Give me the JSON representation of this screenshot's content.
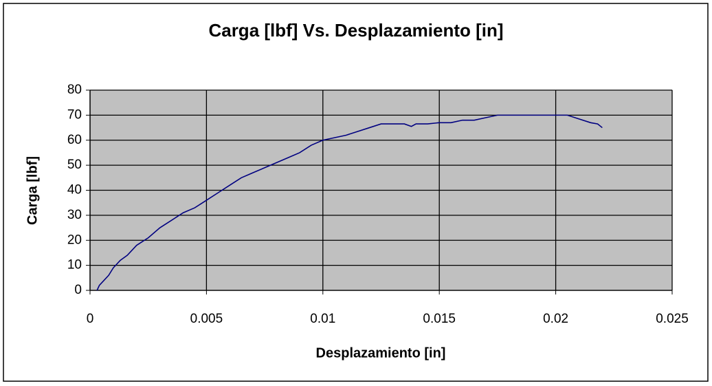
{
  "chart_data": {
    "type": "line",
    "title": "Carga [lbf] Vs. Desplazamiento [in]",
    "x_label": "Desplazamiento [in]",
    "y_label": "Carga [lbf]",
    "x": [
      0.0003,
      0.0004,
      0.0006,
      0.0008,
      0.001,
      0.0013,
      0.0016,
      0.002,
      0.0025,
      0.003,
      0.0035,
      0.004,
      0.0045,
      0.005,
      0.0055,
      0.006,
      0.0065,
      0.007,
      0.0075,
      0.008,
      0.0085,
      0.009,
      0.0095,
      0.01,
      0.0105,
      0.011,
      0.0115,
      0.012,
      0.0125,
      0.013,
      0.0135,
      0.0138,
      0.014,
      0.0145,
      0.015,
      0.0155,
      0.016,
      0.0165,
      0.017,
      0.0175,
      0.018,
      0.019,
      0.02,
      0.0205,
      0.021,
      0.0215,
      0.0218,
      0.022
    ],
    "series": [
      {
        "color": "#000080",
        "values": [
          0,
          2,
          4,
          6,
          9,
          12,
          14,
          18,
          21,
          25,
          28,
          31,
          33,
          36,
          39,
          42,
          45,
          47,
          49,
          51,
          53,
          55,
          58,
          60,
          61,
          62,
          63.5,
          65,
          66.5,
          66.5,
          66.5,
          65.5,
          66.5,
          66.5,
          67,
          67,
          68,
          68,
          69,
          70,
          70,
          70,
          70,
          70,
          68.5,
          67,
          66.5,
          65
        ]
      }
    ],
    "xlim": [
      0,
      0.025
    ],
    "xticks": [
      0,
      0.005,
      0.01,
      0.015,
      0.02,
      0.025
    ],
    "ylim": [
      0,
      80
    ],
    "yticks": [
      0,
      10,
      20,
      30,
      40,
      50,
      60,
      70,
      80
    ],
    "grid": true,
    "plot_background": "#c0c0c0"
  }
}
